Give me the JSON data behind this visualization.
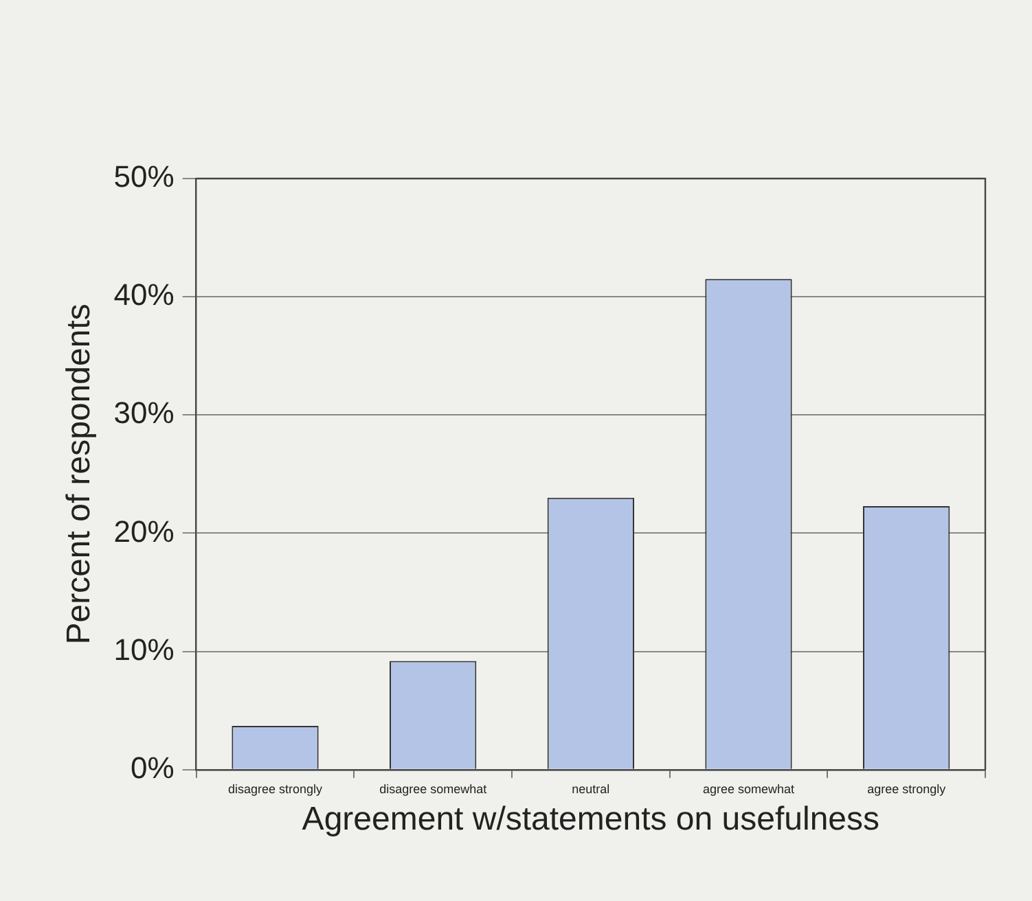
{
  "chart_data": {
    "type": "bar",
    "xlabel": "Agreement w/statements on usefulness",
    "ylabel": "Percent of respondents",
    "categories": [
      "disagree strongly",
      "disagree somewhat",
      "neutral",
      "agree somewhat",
      "agree strongly"
    ],
    "values": [
      3.7,
      9.2,
      23.0,
      41.5,
      22.3
    ],
    "color": "#b4c4e6",
    "ylim": [
      0,
      50
    ],
    "yticks": [
      {
        "value": 0,
        "label": "0%"
      },
      {
        "value": 10,
        "label": "10%"
      },
      {
        "value": 20,
        "label": "20%"
      },
      {
        "value": 30,
        "label": "30%"
      },
      {
        "value": 40,
        "label": "40%"
      },
      {
        "value": 50,
        "label": "50%"
      }
    ],
    "grid": "y",
    "legend": false
  }
}
